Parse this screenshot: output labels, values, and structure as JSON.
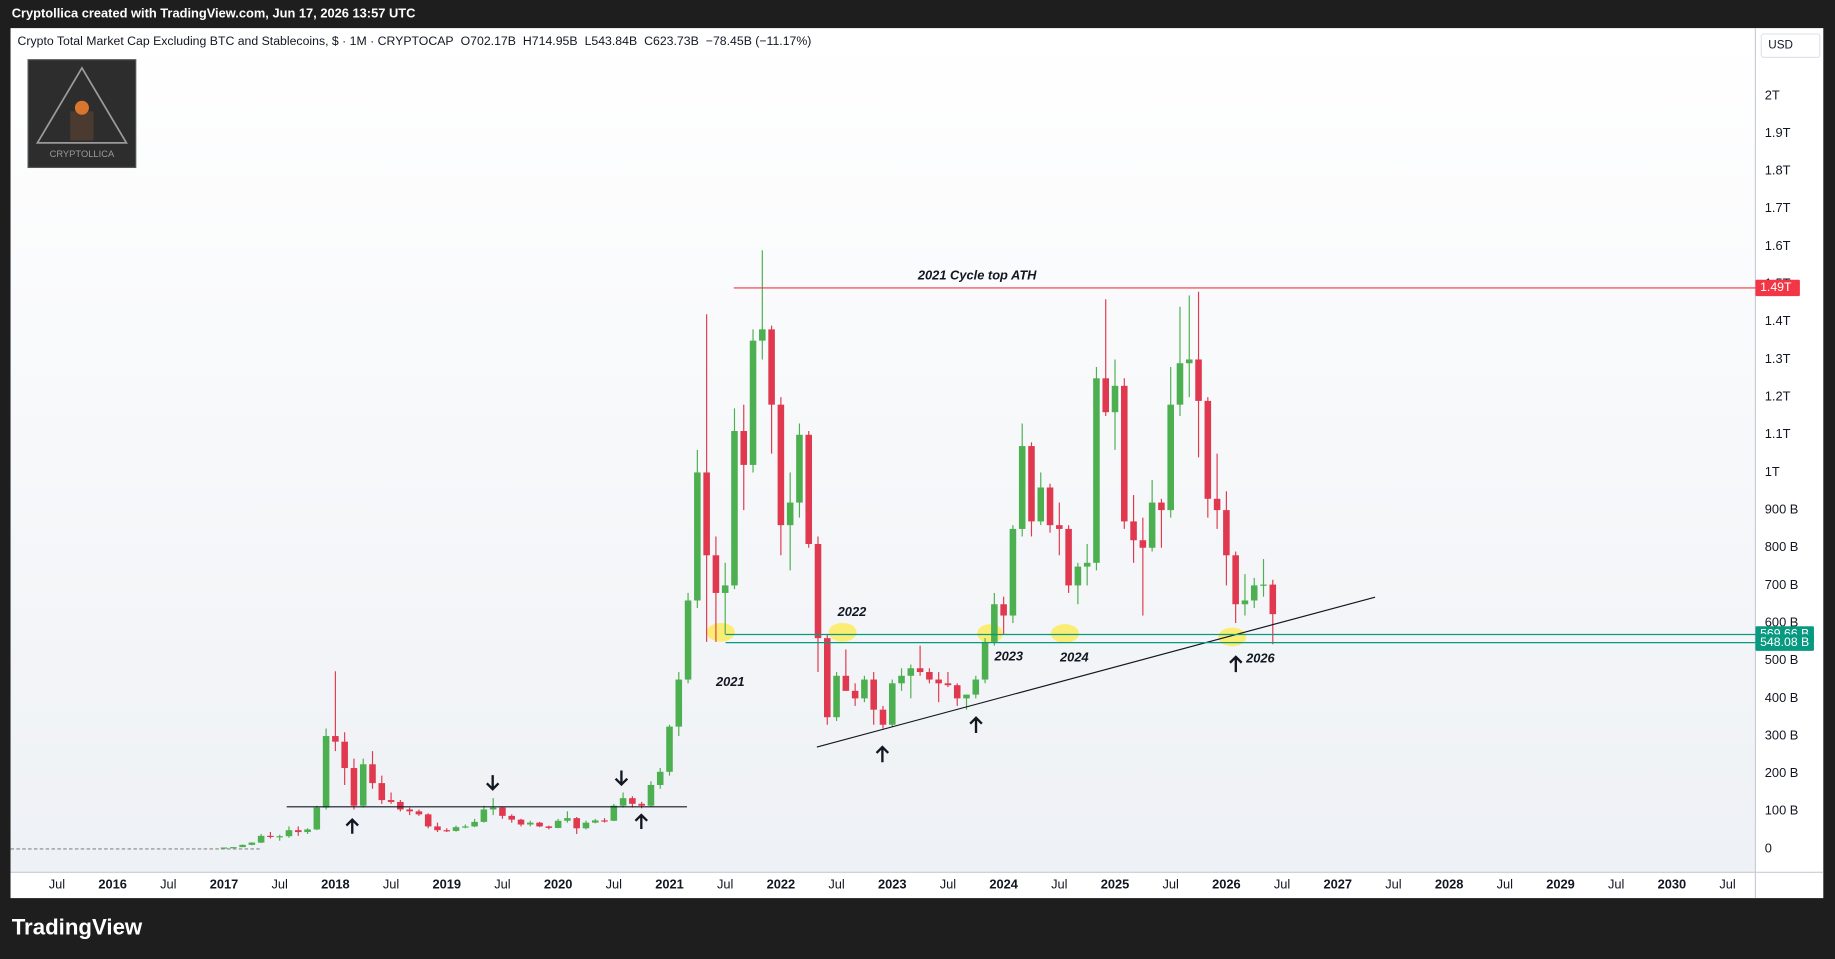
{
  "header": {
    "credit": "Cryptollica created with TradingView.com, Jun 17, 2026 13:57 UTC"
  },
  "logo": {
    "text": "CRYPTOLLICA"
  },
  "footer": {
    "brand": "TradingView"
  },
  "chart_data": {
    "type": "candlestick",
    "title": "Crypto Total Market Cap Excluding BTC and Stablecoins, $ · 1M · CRYPTOCAP",
    "ohlc_legend": [
      "O702.17B",
      "H714.95B",
      "L543.84B",
      "C623.73B",
      "−78.45B (−11.17%)"
    ],
    "currency": "USD",
    "up_color": "#4caf50",
    "down_color": "#e0394f",
    "x": [
      "2017-01",
      "2017-02",
      "2017-03",
      "2017-04",
      "2017-05",
      "2017-06",
      "2017-07",
      "2017-08",
      "2017-09",
      "2017-10",
      "2017-11",
      "2017-12",
      "2018-01",
      "2018-02",
      "2018-03",
      "2018-04",
      "2018-05",
      "2018-06",
      "2018-07",
      "2018-08",
      "2018-09",
      "2018-10",
      "2018-11",
      "2018-12",
      "2019-01",
      "2019-02",
      "2019-03",
      "2019-04",
      "2019-05",
      "2019-06",
      "2019-07",
      "2019-08",
      "2019-09",
      "2019-10",
      "2019-11",
      "2019-12",
      "2020-01",
      "2020-02",
      "2020-03",
      "2020-04",
      "2020-05",
      "2020-06",
      "2020-07",
      "2020-08",
      "2020-09",
      "2020-10",
      "2020-11",
      "2020-12",
      "2021-01",
      "2021-02",
      "2021-03",
      "2021-04",
      "2021-05",
      "2021-06",
      "2021-07",
      "2021-08",
      "2021-09",
      "2021-10",
      "2021-11",
      "2021-12",
      "2022-01",
      "2022-02",
      "2022-03",
      "2022-04",
      "2022-05",
      "2022-06",
      "2022-07",
      "2022-08",
      "2022-09",
      "2022-10",
      "2022-11",
      "2022-12",
      "2023-01",
      "2023-02",
      "2023-03",
      "2023-04",
      "2023-05",
      "2023-06",
      "2023-07",
      "2023-08",
      "2023-09",
      "2023-10",
      "2023-11",
      "2023-12",
      "2024-01",
      "2024-02",
      "2024-03",
      "2024-04",
      "2024-05",
      "2024-06",
      "2024-07",
      "2024-08",
      "2024-09",
      "2024-10",
      "2024-11",
      "2024-12",
      "2025-01",
      "2025-02",
      "2025-03",
      "2025-04",
      "2025-05",
      "2025-06",
      "2025-07",
      "2025-08",
      "2025-09",
      "2025-10",
      "2025-11",
      "2025-12",
      "2026-01",
      "2026-02",
      "2026-03",
      "2026-04",
      "2026-05",
      "2026-06"
    ],
    "open": [
      3,
      4,
      5,
      11,
      17,
      35,
      32,
      34,
      50,
      45,
      52,
      110,
      300,
      285,
      215,
      115,
      225,
      175,
      130,
      125,
      105,
      100,
      92,
      60,
      50,
      48,
      58,
      60,
      72,
      105,
      110,
      88,
      78,
      65,
      70,
      60,
      56,
      75,
      82,
      55,
      70,
      76,
      75,
      115,
      135,
      120,
      115,
      170,
      205,
      325,
      450,
      660,
      1000,
      780,
      680,
      700,
      1110,
      1020,
      1350,
      1380,
      1180,
      860,
      920,
      1100,
      810,
      560,
      350,
      460,
      420,
      400,
      450,
      370,
      330,
      440,
      460,
      480,
      470,
      450,
      440,
      435,
      400,
      410,
      450,
      550,
      650,
      620,
      850,
      1070,
      870,
      960,
      860,
      850,
      700,
      750,
      760,
      1250,
      1160,
      1230,
      870,
      820,
      800,
      920,
      900,
      1180,
      1290,
      1300,
      1190,
      930,
      900,
      780,
      650,
      660,
      700,
      702.17
    ],
    "high": [
      4,
      5,
      12,
      18,
      40,
      45,
      38,
      60,
      60,
      55,
      115,
      320,
      472,
      310,
      240,
      240,
      260,
      195,
      150,
      130,
      110,
      105,
      95,
      70,
      55,
      62,
      65,
      80,
      115,
      135,
      112,
      92,
      80,
      75,
      72,
      62,
      80,
      100,
      85,
      75,
      80,
      82,
      120,
      150,
      140,
      125,
      180,
      215,
      330,
      470,
      680,
      1060,
      1420,
      830,
      760,
      1170,
      1180,
      1380,
      1590,
      1390,
      1200,
      1000,
      1130,
      1110,
      830,
      570,
      470,
      530,
      440,
      460,
      470,
      380,
      450,
      480,
      490,
      540,
      480,
      470,
      470,
      440,
      410,
      460,
      560,
      680,
      670,
      860,
      1130,
      1080,
      1000,
      970,
      920,
      860,
      760,
      810,
      1280,
      1460,
      1300,
      1250,
      940,
      880,
      980,
      930,
      1280,
      1440,
      1470,
      1480,
      1200,
      1050,
      950,
      790,
      730,
      720,
      770,
      714.95
    ],
    "low": [
      3,
      4,
      5,
      10,
      16,
      28,
      22,
      30,
      35,
      40,
      50,
      105,
      260,
      170,
      105,
      110,
      160,
      120,
      120,
      100,
      90,
      88,
      55,
      45,
      45,
      46,
      55,
      58,
      70,
      90,
      80,
      70,
      60,
      60,
      58,
      52,
      55,
      70,
      40,
      52,
      68,
      70,
      74,
      110,
      110,
      108,
      112,
      160,
      195,
      300,
      440,
      640,
      550,
      550,
      570,
      690,
      900,
      1000,
      1300,
      1050,
      780,
      740,
      880,
      800,
      470,
      330,
      340,
      420,
      380,
      390,
      330,
      320,
      325,
      420,
      400,
      460,
      440,
      390,
      430,
      380,
      370,
      400,
      440,
      540,
      570,
      600,
      830,
      830,
      860,
      840,
      780,
      680,
      650,
      700,
      740,
      1150,
      1060,
      850,
      760,
      620,
      790,
      800,
      880,
      1150,
      1200,
      1040,
      880,
      850,
      700,
      600,
      620,
      640,
      670,
      543.84
    ],
    "close": [
      4,
      5,
      11,
      17,
      35,
      32,
      34,
      50,
      45,
      52,
      110,
      300,
      285,
      215,
      115,
      225,
      175,
      130,
      125,
      105,
      100,
      92,
      60,
      50,
      48,
      58,
      60,
      72,
      105,
      110,
      88,
      78,
      65,
      70,
      60,
      56,
      75,
      82,
      55,
      70,
      76,
      75,
      115,
      135,
      120,
      115,
      170,
      205,
      325,
      450,
      660,
      1000,
      780,
      680,
      700,
      1110,
      1020,
      1350,
      1380,
      1180,
      860,
      920,
      1100,
      810,
      560,
      350,
      460,
      420,
      400,
      450,
      370,
      330,
      440,
      460,
      480,
      470,
      450,
      440,
      435,
      400,
      410,
      450,
      550,
      650,
      620,
      850,
      1070,
      870,
      960,
      860,
      850,
      700,
      750,
      760,
      1250,
      1160,
      1230,
      870,
      820,
      800,
      920,
      900,
      1180,
      1290,
      1300,
      1190,
      930,
      900,
      780,
      650,
      660,
      700,
      702.17,
      623.73
    ],
    "xlim": [
      "2015-02",
      "2030-10"
    ],
    "xticks": [
      {
        "value": "2015-07",
        "label": "Jul"
      },
      {
        "value": "2016-01",
        "label": "2016"
      },
      {
        "value": "2016-07",
        "label": "Jul"
      },
      {
        "value": "2017-01",
        "label": "2017"
      },
      {
        "value": "2017-07",
        "label": "Jul"
      },
      {
        "value": "2018-01",
        "label": "2018"
      },
      {
        "value": "2018-07",
        "label": "Jul"
      },
      {
        "value": "2019-01",
        "label": "2019"
      },
      {
        "value": "2019-07",
        "label": "Jul"
      },
      {
        "value": "2020-01",
        "label": "2020"
      },
      {
        "value": "2020-07",
        "label": "Jul"
      },
      {
        "value": "2021-01",
        "label": "2021"
      },
      {
        "value": "2021-07",
        "label": "Jul"
      },
      {
        "value": "2022-01",
        "label": "2022"
      },
      {
        "value": "2022-07",
        "label": "Jul"
      },
      {
        "value": "2023-01",
        "label": "2023"
      },
      {
        "value": "2023-07",
        "label": "Jul"
      },
      {
        "value": "2024-01",
        "label": "2024"
      },
      {
        "value": "2024-07",
        "label": "Jul"
      },
      {
        "value": "2025-01",
        "label": "2025"
      },
      {
        "value": "2025-07",
        "label": "Jul"
      },
      {
        "value": "2026-01",
        "label": "2026"
      },
      {
        "value": "2026-07",
        "label": "Jul"
      },
      {
        "value": "2027-01",
        "label": "2027"
      },
      {
        "value": "2027-07",
        "label": "Jul"
      },
      {
        "value": "2028-01",
        "label": "2028"
      },
      {
        "value": "2028-07",
        "label": "Jul"
      },
      {
        "value": "2029-01",
        "label": "2029"
      },
      {
        "value": "2029-07",
        "label": "Jul"
      },
      {
        "value": "2030-01",
        "label": "2030"
      },
      {
        "value": "2030-07",
        "label": "Jul"
      }
    ],
    "ylim": [
      -62,
      2180
    ],
    "yticks": [
      0,
      {
        "value": 100,
        "label": "100 B"
      },
      {
        "value": 200,
        "label": "200 B"
      },
      {
        "value": 300,
        "label": "300 B"
      },
      {
        "value": 400,
        "label": "400 B"
      },
      {
        "value": 500,
        "label": "500 B"
      },
      {
        "value": 600,
        "label": "600 B"
      },
      {
        "value": 700,
        "label": "700 B"
      },
      {
        "value": 800,
        "label": "800 B"
      },
      {
        "value": 900,
        "label": "900 B"
      },
      {
        "value": 1000,
        "label": "1T"
      },
      {
        "value": 1100,
        "label": "1.1T"
      },
      {
        "value": 1200,
        "label": "1.2T"
      },
      {
        "value": 1300,
        "label": "1.3T"
      },
      {
        "value": 1400,
        "label": "1.4T"
      },
      {
        "value": 1500,
        "label": "1.5T"
      },
      {
        "value": 1600,
        "label": "1.6T"
      },
      {
        "value": 1700,
        "label": "1.7T"
      },
      {
        "value": 1800,
        "label": "1.8T"
      },
      {
        "value": 1900,
        "label": "1.9T"
      },
      {
        "value": 2000,
        "label": "2T"
      }
    ],
    "price_lines": [
      {
        "value": 1490,
        "label": "1.49T",
        "color": "#f23645"
      },
      {
        "value": 569.66,
        "label": "569.66 B",
        "color": "#089981"
      },
      {
        "value": 548.08,
        "label": "548.08 B",
        "color": "#089981"
      }
    ],
    "annotations": [
      "2021 Cycle top ATH",
      "2021",
      "2022",
      "2023",
      "2024",
      "2026"
    ]
  }
}
